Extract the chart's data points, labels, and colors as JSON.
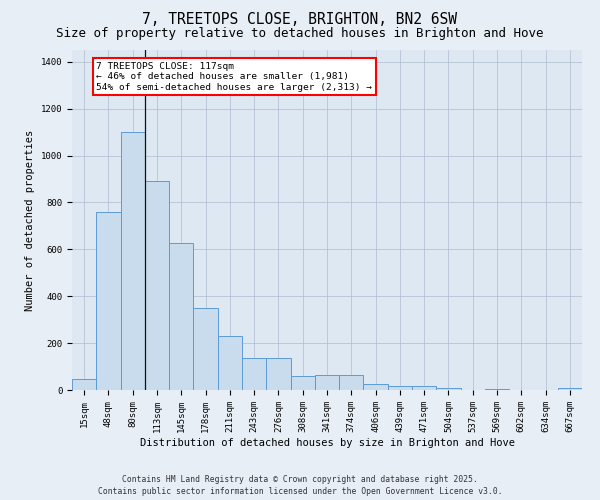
{
  "title": "7, TREETOPS CLOSE, BRIGHTON, BN2 6SW",
  "subtitle": "Size of property relative to detached houses in Brighton and Hove",
  "xlabel": "Distribution of detached houses by size in Brighton and Hove",
  "ylabel": "Number of detached properties",
  "categories": [
    "15sqm",
    "48sqm",
    "80sqm",
    "113sqm",
    "145sqm",
    "178sqm",
    "211sqm",
    "243sqm",
    "276sqm",
    "308sqm",
    "341sqm",
    "374sqm",
    "406sqm",
    "439sqm",
    "471sqm",
    "504sqm",
    "537sqm",
    "569sqm",
    "602sqm",
    "634sqm",
    "667sqm"
  ],
  "values": [
    45,
    760,
    1100,
    890,
    625,
    350,
    230,
    135,
    135,
    60,
    65,
    65,
    25,
    15,
    15,
    10,
    0,
    5,
    0,
    0,
    10
  ],
  "bar_color": "#c8dced",
  "bar_edge_color": "#5b9bd5",
  "fig_bg_color": "#e8eef5",
  "ax_bg_color": "#dde8f3",
  "grid_color": "#b0bcd0",
  "annotation_text": "7 TREETOPS CLOSE: 117sqm\n← 46% of detached houses are smaller (1,981)\n54% of semi-detached houses are larger (2,313) →",
  "vline_x": 2.5,
  "vline_color": "#111111",
  "ylim": [
    0,
    1450
  ],
  "yticks": [
    0,
    200,
    400,
    600,
    800,
    1000,
    1200,
    1400
  ],
  "footer": "Contains HM Land Registry data © Crown copyright and database right 2025.\nContains public sector information licensed under the Open Government Licence v3.0.",
  "title_fontsize": 10.5,
  "subtitle_fontsize": 9,
  "xlabel_fontsize": 7.5,
  "ylabel_fontsize": 7.5,
  "tick_fontsize": 6.5,
  "annot_fontsize": 6.8,
  "footer_fontsize": 5.8
}
